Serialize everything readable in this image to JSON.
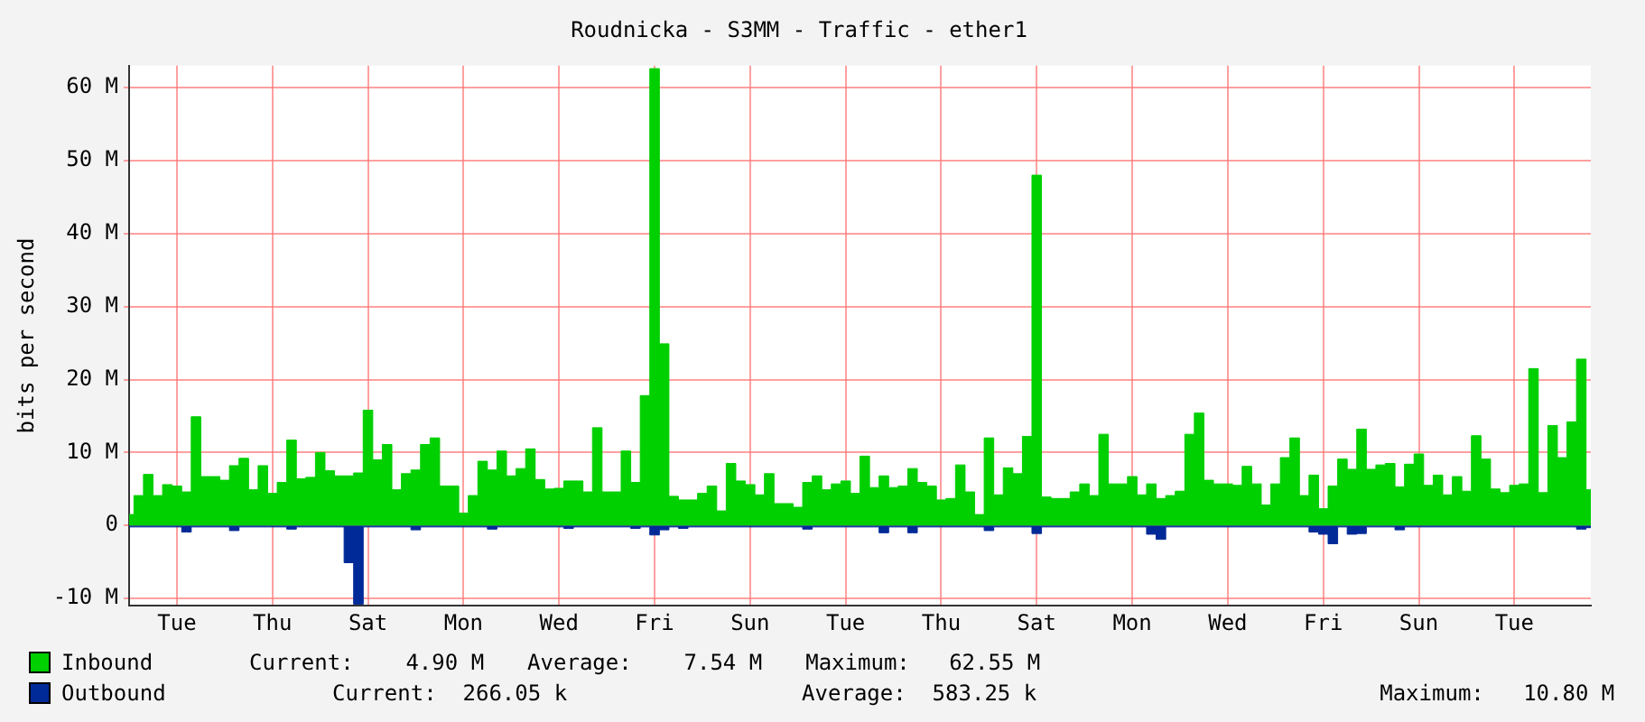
{
  "chart_data": {
    "type": "area",
    "title": "Roudnicka - S3MM - Traffic - ether1",
    "ylabel": "bits per second",
    "categories": [
      null,
      null,
      null,
      null,
      null,
      "Tue",
      null,
      null,
      null,
      null,
      null,
      null,
      null,
      null,
      null,
      "Thu",
      null,
      null,
      null,
      null,
      null,
      null,
      null,
      null,
      null,
      "Sat",
      null,
      null,
      null,
      null,
      null,
      null,
      null,
      null,
      null,
      "Mon",
      null,
      null,
      null,
      null,
      null,
      null,
      null,
      null,
      null,
      "Wed",
      null,
      null,
      null,
      null,
      null,
      null,
      null,
      null,
      null,
      "Fri",
      null,
      null,
      null,
      null,
      null,
      null,
      null,
      null,
      null,
      "Sun",
      null,
      null,
      null,
      null,
      null,
      null,
      null,
      null,
      null,
      "Tue",
      null,
      null,
      null,
      null,
      null,
      null,
      null,
      null,
      null,
      "Thu",
      null,
      null,
      null,
      null,
      null,
      null,
      null,
      null,
      null,
      "Sat",
      null,
      null,
      null,
      null,
      null,
      null,
      null,
      null,
      null,
      "Mon",
      null,
      null,
      null,
      null,
      null,
      null,
      null,
      null,
      null,
      "Wed",
      null,
      null,
      null,
      null,
      null,
      null,
      null,
      null,
      null,
      "Fri",
      null,
      null,
      null,
      null,
      null,
      null,
      null,
      null,
      null,
      "Sun",
      null,
      null,
      null,
      null,
      null,
      null,
      null,
      null,
      null,
      "Tue",
      null,
      null,
      null,
      null,
      null,
      null,
      null,
      null
    ],
    "ylim": [
      -11,
      63
    ],
    "yticks": [
      {
        "value": -10,
        "label": "-10 M"
      },
      0,
      {
        "value": 10,
        "label": "10 M"
      },
      {
        "value": 20,
        "label": "20 M"
      },
      {
        "value": 30,
        "label": "30 M"
      },
      {
        "value": 40,
        "label": "40 M"
      },
      {
        "value": 50,
        "label": "50 M"
      },
      {
        "value": 60,
        "label": "60 M"
      }
    ],
    "grid": true,
    "legend": "bottom",
    "annotations": [
      "Current:    4.90 M",
      "Average:    7.54 M",
      "Maximum:   62.55 M",
      "Current:  266.05 k",
      "Average:  583.25 k",
      "Maximum:   10.80 M"
    ],
    "series": [
      {
        "name": "Inbound",
        "color": "#00cf00",
        "values": [
          1.5,
          4.1,
          7.0,
          4.1,
          5.6,
          5.4,
          4.6,
          14.9,
          6.7,
          6.7,
          6.2,
          8.2,
          9.2,
          4.9,
          8.2,
          4.4,
          5.9,
          11.7,
          6.4,
          6.6,
          10.0,
          7.5,
          6.8,
          6.8,
          7.2,
          15.8,
          9.0,
          11.1,
          4.9,
          7.1,
          7.6,
          11.1,
          12.0,
          5.4,
          5.4,
          1.7,
          4.1,
          8.8,
          7.6,
          10.2,
          6.8,
          7.8,
          10.5,
          6.3,
          5.0,
          5.1,
          6.1,
          6.1,
          4.6,
          13.4,
          4.6,
          4.6,
          10.2,
          5.9,
          17.8,
          62.6,
          24.9,
          4.0,
          3.5,
          3.5,
          4.4,
          5.4,
          2.0,
          8.5,
          6.1,
          5.6,
          4.2,
          7.1,
          3.0,
          3.0,
          2.5,
          5.9,
          6.8,
          4.9,
          5.7,
          6.1,
          4.4,
          9.5,
          5.2,
          6.8,
          5.2,
          5.4,
          7.8,
          5.9,
          5.4,
          3.5,
          3.7,
          8.3,
          4.6,
          1.5,
          12.0,
          4.2,
          7.9,
          7.1,
          12.2,
          48.0,
          3.9,
          3.7,
          3.7,
          4.6,
          5.7,
          4.1,
          12.5,
          5.7,
          5.7,
          6.7,
          4.2,
          5.7,
          3.7,
          4.1,
          4.7,
          12.5,
          15.4,
          6.2,
          5.7,
          5.7,
          5.5,
          8.1,
          5.7,
          2.8,
          5.7,
          9.3,
          12.0,
          4.1,
          6.9,
          2.3,
          5.4,
          9.1,
          7.7,
          13.2,
          7.7,
          8.3,
          8.5,
          5.3,
          8.4,
          9.8,
          5.5,
          6.9,
          4.2,
          6.7,
          4.7,
          12.3,
          9.1,
          5.0,
          4.5,
          5.5,
          5.7,
          21.5,
          4.5,
          13.7,
          9.3,
          14.2,
          22.8,
          4.9
        ]
      },
      {
        "name": "Outbound",
        "color": "#002a97",
        "values": [
          -0.2,
          -0.2,
          -0.2,
          -0.2,
          -0.2,
          -0.2,
          -0.9,
          -0.2,
          -0.2,
          -0.2,
          -0.2,
          -0.7,
          -0.2,
          -0.2,
          -0.2,
          -0.2,
          -0.2,
          -0.5,
          -0.2,
          -0.2,
          -0.2,
          -0.2,
          -0.2,
          -5.1,
          -10.8,
          -0.2,
          -0.2,
          -0.2,
          -0.2,
          -0.2,
          -0.6,
          -0.2,
          -0.2,
          -0.2,
          -0.2,
          -0.2,
          -0.2,
          -0.2,
          -0.5,
          -0.2,
          -0.2,
          -0.2,
          -0.2,
          -0.2,
          -0.2,
          -0.2,
          -0.4,
          -0.2,
          -0.2,
          -0.2,
          -0.2,
          -0.2,
          -0.2,
          -0.4,
          -0.2,
          -1.3,
          -0.6,
          -0.2,
          -0.4,
          -0.2,
          -0.2,
          -0.2,
          -0.2,
          -0.2,
          -0.2,
          -0.2,
          -0.2,
          -0.2,
          -0.2,
          -0.2,
          -0.2,
          -0.5,
          -0.2,
          -0.2,
          -0.2,
          -0.2,
          -0.2,
          -0.2,
          -0.2,
          -1.0,
          -0.2,
          -0.2,
          -1.0,
          -0.2,
          -0.2,
          -0.2,
          -0.2,
          -0.2,
          -0.2,
          -0.2,
          -0.7,
          -0.2,
          -0.2,
          -0.2,
          -0.2,
          -1.1,
          -0.2,
          -0.2,
          -0.2,
          -0.2,
          -0.2,
          -0.2,
          -0.2,
          -0.2,
          -0.2,
          -0.2,
          -0.2,
          -1.2,
          -1.9,
          -0.2,
          -0.2,
          -0.2,
          -0.2,
          -0.2,
          -0.2,
          -0.2,
          -0.2,
          -0.2,
          -0.2,
          -0.2,
          -0.2,
          -0.2,
          -0.2,
          -0.2,
          -0.9,
          -1.2,
          -2.5,
          -0.2,
          -1.2,
          -1.1,
          -0.2,
          -0.2,
          -0.2,
          -0.6,
          -0.2,
          -0.2,
          -0.2,
          -0.2,
          -0.2,
          -0.2,
          -0.2,
          -0.2,
          -0.2,
          -0.2,
          -0.2,
          -0.2,
          -0.2,
          -0.2,
          -0.2,
          -0.2,
          -0.2,
          -0.2,
          -0.5,
          -0.3
        ]
      }
    ]
  }
}
